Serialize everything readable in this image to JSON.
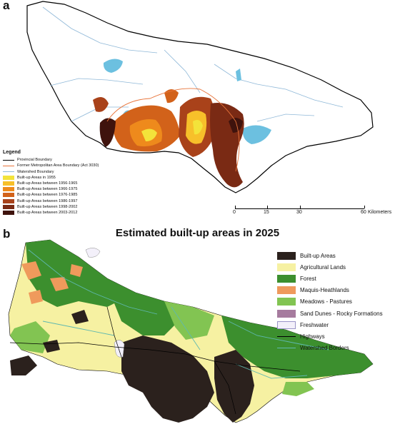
{
  "panel_a": {
    "label": "a",
    "legend": {
      "title": "Legend",
      "items": [
        {
          "label": "Provincial Boundary",
          "kind": "line",
          "color": "#000000"
        },
        {
          "label": "Former Metropolitan Area Boundary (Act 3030)",
          "kind": "line",
          "color": "#e8743a"
        },
        {
          "label": "Watershed Boundary",
          "kind": "line",
          "color": "#8fb8d8"
        },
        {
          "label": "Built-up Areas in 1955",
          "kind": "fill",
          "color": "#f3e33a"
        },
        {
          "label": "Built-up Areas between 1956-1965",
          "kind": "fill",
          "color": "#f7c02a"
        },
        {
          "label": "Built-up Areas between 1966-1975",
          "kind": "fill",
          "color": "#ee8a1c"
        },
        {
          "label": "Built-up Areas between 1976-1985",
          "kind": "fill",
          "color": "#d2621a"
        },
        {
          "label": "Built-up Areas between 1986-1997",
          "kind": "fill",
          "color": "#a9421a"
        },
        {
          "label": "Built-up Areas between 1998-2002",
          "kind": "fill",
          "color": "#7a2a14"
        },
        {
          "label": "Built-up Areas between 2003-2012",
          "kind": "fill",
          "color": "#3f130d"
        }
      ]
    },
    "scale": {
      "ticks": [
        "0",
        "15",
        "30",
        "60"
      ],
      "unit": "Kilometers"
    }
  },
  "panel_b": {
    "label": "b",
    "title": "Estimated built-up areas in 2025",
    "legend": [
      {
        "label": "Built-up Areas",
        "kind": "fill",
        "color": "#2b211d"
      },
      {
        "label": "Agricultural Lands",
        "kind": "fill",
        "color": "#f6f1a2"
      },
      {
        "label": "Forest",
        "kind": "fill",
        "color": "#3c8f2e"
      },
      {
        "label": "Maquis-Heathlands",
        "kind": "fill",
        "color": "#ef9a5c"
      },
      {
        "label": "Meadows - Pastures",
        "kind": "fill",
        "color": "#82c452"
      },
      {
        "label": "Sand Dunes - Rocky Formations",
        "kind": "fill",
        "color": "#a67b9e"
      },
      {
        "label": "Freshwater",
        "kind": "fill",
        "color": "#f3f0fa"
      },
      {
        "label": "Highways",
        "kind": "line",
        "color": "#000000"
      },
      {
        "label": "Watershed Borders",
        "kind": "line",
        "color": "#5fb8b0"
      }
    ]
  }
}
